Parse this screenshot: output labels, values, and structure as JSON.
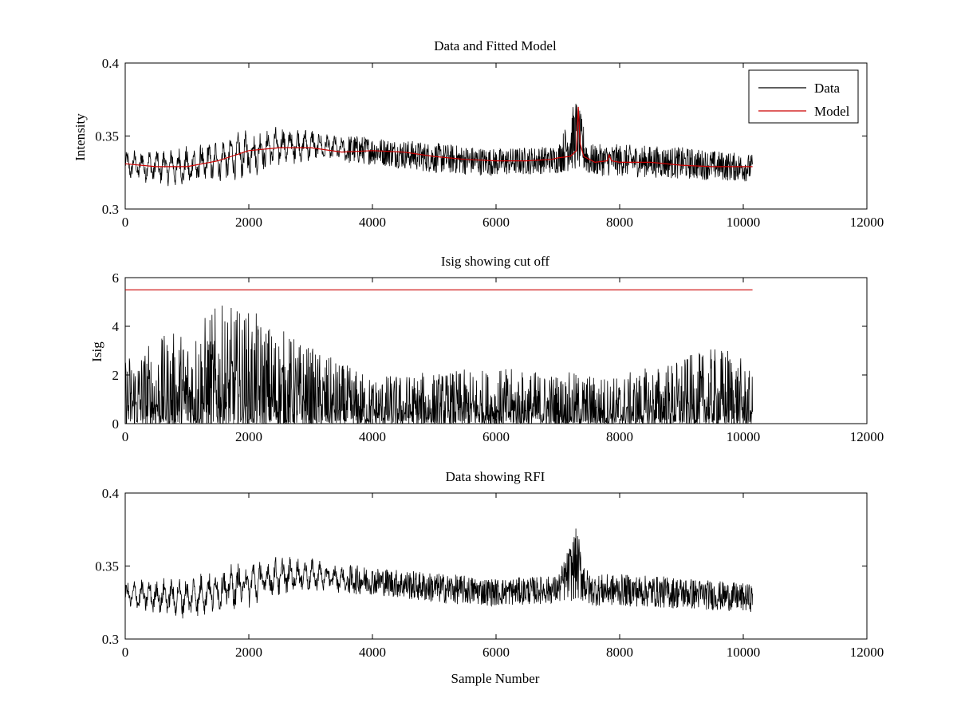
{
  "figure": {
    "background": "#ffffff",
    "colors": {
      "data": "#000000",
      "model": "#cc0000",
      "cutoff": "#cc0000",
      "axes": "#000000"
    }
  },
  "chart_data": [
    {
      "type": "line",
      "title": "Data and Fitted Model",
      "xlabel": "",
      "ylabel": "Intensity",
      "xlim": [
        0,
        12000
      ],
      "ylim": [
        0.3,
        0.4
      ],
      "xticks": [
        0,
        2000,
        4000,
        6000,
        8000,
        10000,
        12000
      ],
      "yticks": [
        0.3,
        0.35,
        0.4
      ],
      "xtick_labels": [
        "0",
        "2000",
        "4000",
        "6000",
        "8000",
        "10000",
        "12000"
      ],
      "ytick_labels": [
        "0.3",
        "0.35",
        "0.4"
      ],
      "legend": {
        "placement": "top-right",
        "entries": [
          {
            "label": "Data",
            "color": "#000000"
          },
          {
            "label": "Model",
            "color": "#cc0000"
          }
        ]
      },
      "series": [
        {
          "name": "Data",
          "color": "#000000",
          "kind": "noisy",
          "envelope_x": [
            0,
            1000,
            2000,
            2500,
            3000,
            3500,
            4000,
            5000,
            6000,
            7000,
            7300,
            7500,
            8000,
            9000,
            10150
          ],
          "envelope_min": [
            0.318,
            0.311,
            0.318,
            0.326,
            0.33,
            0.33,
            0.33,
            0.324,
            0.322,
            0.324,
            0.325,
            0.322,
            0.322,
            0.32,
            0.318
          ],
          "envelope_max": [
            0.342,
            0.346,
            0.358,
            0.36,
            0.358,
            0.352,
            0.35,
            0.346,
            0.342,
            0.344,
            0.378,
            0.345,
            0.345,
            0.343,
            0.338
          ]
        },
        {
          "name": "Model",
          "color": "#cc0000",
          "kind": "line",
          "x": [
            0,
            500,
            1000,
            1500,
            2000,
            2500,
            3000,
            3500,
            4000,
            4500,
            5000,
            5500,
            6000,
            6500,
            6900,
            7000,
            7200,
            7300,
            7330,
            7360,
            7420,
            7600,
            7800,
            7830,
            7870,
            8000,
            8500,
            9000,
            9500,
            10150
          ],
          "y": [
            0.331,
            0.329,
            0.329,
            0.333,
            0.34,
            0.342,
            0.342,
            0.339,
            0.34,
            0.339,
            0.336,
            0.334,
            0.333,
            0.333,
            0.334,
            0.335,
            0.336,
            0.34,
            0.37,
            0.345,
            0.336,
            0.332,
            0.333,
            0.337,
            0.333,
            0.332,
            0.332,
            0.33,
            0.329,
            0.329
          ]
        }
      ]
    },
    {
      "type": "line",
      "title": "Isig showing cut off",
      "xlabel": "",
      "ylabel": "Isig",
      "xlim": [
        0,
        12000
      ],
      "ylim": [
        0,
        6
      ],
      "xticks": [
        0,
        2000,
        4000,
        6000,
        8000,
        10000,
        12000
      ],
      "yticks": [
        0,
        2,
        4,
        6
      ],
      "xtick_labels": [
        "0",
        "2000",
        "4000",
        "6000",
        "8000",
        "10000",
        "12000"
      ],
      "ytick_labels": [
        "0",
        "2",
        "4",
        "6"
      ],
      "series": [
        {
          "kind": "noisy",
          "color": "#000000",
          "envelope_x": [
            0,
            1000,
            1500,
            2000,
            2500,
            3000,
            3500,
            4000,
            6000,
            8000,
            9800,
            10150
          ],
          "envelope_min": [
            0,
            0,
            0,
            0,
            0,
            0,
            0,
            0,
            0,
            0,
            0,
            0
          ],
          "envelope_max": [
            3.0,
            4.0,
            4.9,
            4.7,
            4.0,
            3.2,
            2.5,
            2.0,
            2.3,
            2.0,
            3.3,
            2.0
          ]
        },
        {
          "kind": "line",
          "color": "#cc0000",
          "x": [
            0,
            10150
          ],
          "y": [
            5.5,
            5.5
          ]
        }
      ]
    },
    {
      "type": "line",
      "title": "Data showing RFI",
      "xlabel": "Sample Number",
      "ylabel": "",
      "xlim": [
        0,
        12000
      ],
      "ylim": [
        0.3,
        0.4
      ],
      "xticks": [
        0,
        2000,
        4000,
        6000,
        8000,
        10000,
        12000
      ],
      "yticks": [
        0.3,
        0.35,
        0.4
      ],
      "xtick_labels": [
        "0",
        "2000",
        "4000",
        "6000",
        "8000",
        "10000",
        "12000"
      ],
      "ytick_labels": [
        "0.3",
        "0.35",
        "0.4"
      ],
      "series": [
        {
          "kind": "noisy",
          "color": "#000000",
          "envelope_x": [
            0,
            1000,
            2000,
            2500,
            3000,
            3500,
            4000,
            5000,
            6000,
            7000,
            7300,
            7500,
            8000,
            9000,
            10150
          ],
          "envelope_min": [
            0.318,
            0.311,
            0.318,
            0.326,
            0.33,
            0.33,
            0.33,
            0.324,
            0.322,
            0.324,
            0.325,
            0.322,
            0.322,
            0.32,
            0.318
          ],
          "envelope_max": [
            0.342,
            0.346,
            0.358,
            0.36,
            0.358,
            0.352,
            0.35,
            0.346,
            0.342,
            0.344,
            0.378,
            0.345,
            0.345,
            0.343,
            0.338
          ]
        }
      ]
    }
  ]
}
